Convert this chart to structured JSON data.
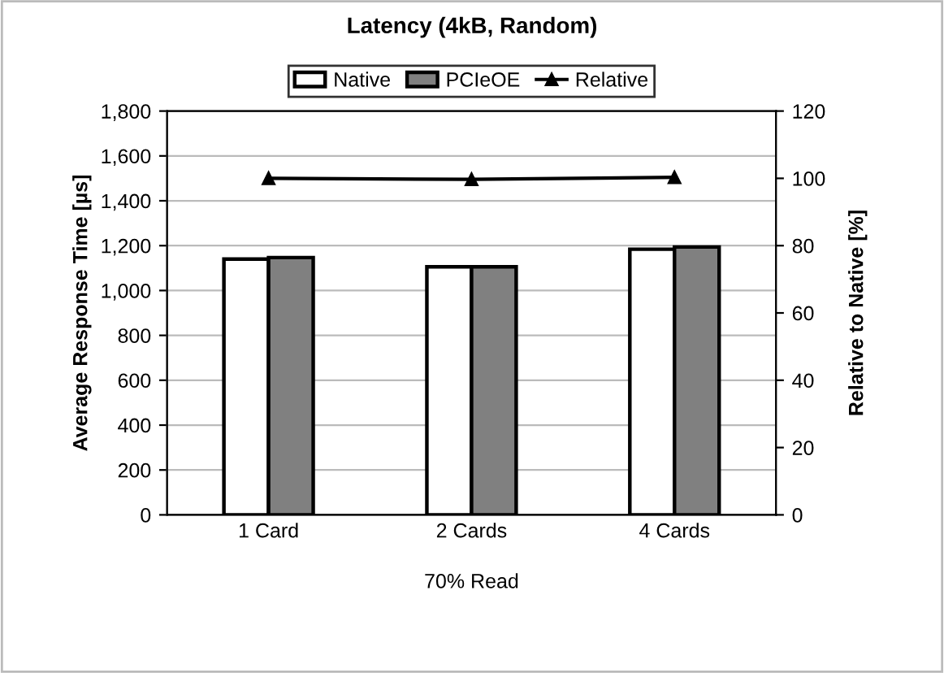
{
  "chart_data": {
    "type": "bar",
    "title": "Latency (4kB, Random)",
    "xlabel": "70% Read",
    "ylabel": "Average Response Time [µs]",
    "y2label": "Relative to Native [%]",
    "categories": [
      "1 Card",
      "2 Cards",
      "4 Cards"
    ],
    "series": [
      {
        "name": "Native",
        "color": "#ffffff",
        "values": [
          1140,
          1106,
          1184
        ]
      },
      {
        "name": "PCIeOE",
        "color": "#808080",
        "values": [
          1147,
          1106,
          1194
        ]
      },
      {
        "name": "Relative",
        "type": "line",
        "axis": "y2",
        "color": "#000000",
        "marker": "triangle",
        "values": [
          100.0,
          99.7,
          100.3
        ]
      }
    ],
    "ylim": [
      0,
      1800
    ],
    "yticks": [
      0,
      {
        "value": 200,
        "label": "200"
      },
      {
        "value": 400,
        "label": "400"
      },
      {
        "value": 600,
        "label": "600"
      },
      {
        "value": 800,
        "label": "800"
      },
      {
        "value": 1000,
        "label": "1,000"
      },
      {
        "value": 1200,
        "label": "1,200"
      },
      {
        "value": 1400,
        "label": "1,400"
      },
      {
        "value": 1600,
        "label": "1,600"
      },
      {
        "value": 1800,
        "label": "1,800"
      }
    ],
    "y2lim": [
      0,
      120
    ],
    "y2ticks": [
      0,
      20,
      40,
      60,
      80,
      100,
      120
    ],
    "grid": "y",
    "legend": "top"
  }
}
